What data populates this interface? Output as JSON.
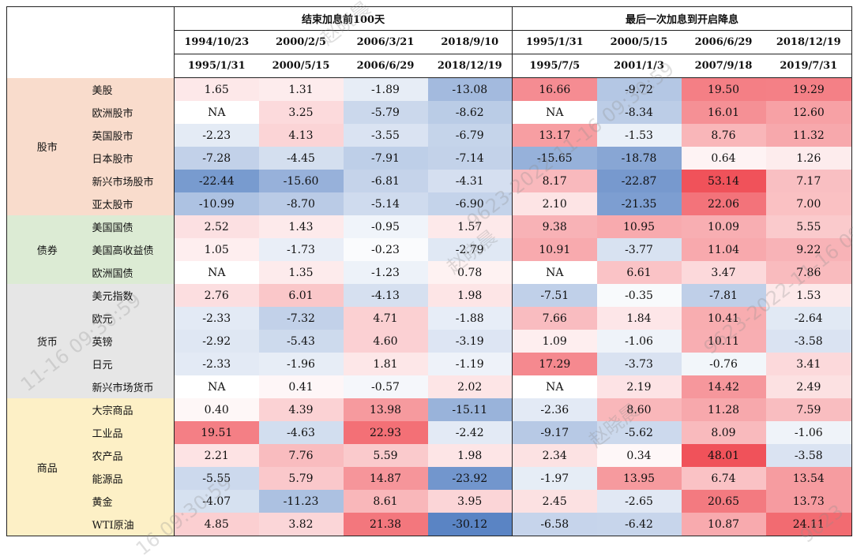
{
  "headers": {
    "group1": "结束加息前100天",
    "group2": "最后一次加息到开启降息",
    "start": [
      "1994/10/23",
      "2000/2/5",
      "2006/3/21",
      "2018/9/10",
      "1995/1/31",
      "2000/5/15",
      "2006/6/29",
      "2018/12/19"
    ],
    "end": [
      "1995/1/31",
      "2000/5/15",
      "2006/6/29",
      "2018/12/19",
      "1995/7/5",
      "2001/1/3",
      "2007/9/18",
      "2019/7/31"
    ]
  },
  "groups": [
    {
      "name": "股市",
      "color": "#f9dccc",
      "rows": [
        {
          "label": "美股",
          "values": [
            "1.65",
            "1.31",
            "-1.89",
            "-13.08",
            "16.66",
            "-9.72",
            "19.50",
            "19.29"
          ]
        },
        {
          "label": "欧洲股市",
          "values": [
            "NA",
            "3.25",
            "-5.79",
            "-8.62",
            "NA",
            "-8.34",
            "16.01",
            "12.60"
          ]
        },
        {
          "label": "英国股市",
          "values": [
            "-2.23",
            "4.13",
            "-3.55",
            "-6.79",
            "13.17",
            "-1.53",
            "8.76",
            "11.32"
          ]
        },
        {
          "label": "日本股市",
          "values": [
            "-7.28",
            "-4.45",
            "-7.91",
            "-7.14",
            "-15.65",
            "-18.78",
            "0.64",
            "1.26"
          ]
        },
        {
          "label": "新兴市场股市",
          "values": [
            "-22.44",
            "-15.60",
            "-6.81",
            "-4.31",
            "8.17",
            "-22.87",
            "53.14",
            "7.17"
          ]
        },
        {
          "label": "亚太股市",
          "values": [
            "-10.99",
            "-8.70",
            "-5.14",
            "-6.90",
            "2.10",
            "-21.35",
            "22.06",
            "7.00"
          ]
        }
      ]
    },
    {
      "name": "债券",
      "color": "#dcebd4",
      "rows": [
        {
          "label": "美国国债",
          "values": [
            "2.52",
            "1.43",
            "-0.95",
            "1.57",
            "9.38",
            "10.95",
            "10.09",
            "5.55"
          ]
        },
        {
          "label": "美国高收益债",
          "values": [
            "1.05",
            "-1.73",
            "-0.23",
            "-2.79",
            "10.91",
            "-3.77",
            "11.04",
            "9.22"
          ]
        },
        {
          "label": "欧洲国债",
          "values": [
            "NA",
            "1.35",
            "-1.23",
            "0.78",
            "NA",
            "6.61",
            "3.47",
            "7.86"
          ]
        }
      ]
    },
    {
      "name": "货币",
      "color": "#e6e6e6",
      "rows": [
        {
          "label": "美元指数",
          "values": [
            "2.76",
            "6.01",
            "-4.13",
            "1.98",
            "-7.51",
            "-0.35",
            "-7.81",
            "1.53"
          ]
        },
        {
          "label": "欧元",
          "values": [
            "-2.33",
            "-7.32",
            "4.71",
            "-1.88",
            "7.66",
            "1.84",
            "10.41",
            "-2.64"
          ]
        },
        {
          "label": "英镑",
          "values": [
            "-2.92",
            "-5.43",
            "4.60",
            "-3.19",
            "1.09",
            "-1.06",
            "10.11",
            "-3.58"
          ]
        },
        {
          "label": "日元",
          "values": [
            "-2.33",
            "-1.96",
            "1.81",
            "-1.19",
            "17.29",
            "-3.73",
            "-0.76",
            "3.41"
          ]
        },
        {
          "label": "新兴市场货币",
          "values": [
            "NA",
            "0.41",
            "-0.57",
            "2.02",
            "NA",
            "2.19",
            "14.42",
            "2.49"
          ]
        }
      ]
    },
    {
      "name": "商品",
      "color": "#fdf0c6",
      "rows": [
        {
          "label": "大宗商品",
          "values": [
            "0.40",
            "4.39",
            "13.98",
            "-15.11",
            "-2.36",
            "8.60",
            "11.28",
            "7.59"
          ]
        },
        {
          "label": "工业品",
          "values": [
            "19.51",
            "-4.63",
            "22.93",
            "-2.42",
            "-9.17",
            "-5.62",
            "8.09",
            "-1.06"
          ]
        },
        {
          "label": "农产品",
          "values": [
            "2.21",
            "7.76",
            "5.59",
            "1.98",
            "2.34",
            "0.34",
            "48.01",
            "-3.58"
          ]
        },
        {
          "label": "能源品",
          "values": [
            "-5.55",
            "5.79",
            "14.87",
            "-23.92",
            "-1.97",
            "13.95",
            "6.74",
            "13.54"
          ]
        },
        {
          "label": "黄金",
          "values": [
            "-4.07",
            "-11.23",
            "8.61",
            "3.95",
            "2.45",
            "-2.65",
            "20.65",
            "13.73"
          ]
        },
        {
          "label": "WTI原油",
          "values": [
            "4.85",
            "3.82",
            "21.38",
            "-30.12",
            "-6.58",
            "-6.42",
            "10.87",
            "24.11"
          ]
        }
      ]
    }
  ],
  "watermarks": [
    "赵晓晨",
    "9623-2022-11-16 09:30:59",
    "赵晓晨",
    "11-16 09:30:59",
    "9623-2022-11-16 09:30:59",
    "赵晓晨",
    "16 09:30:59",
    "9623"
  ]
}
